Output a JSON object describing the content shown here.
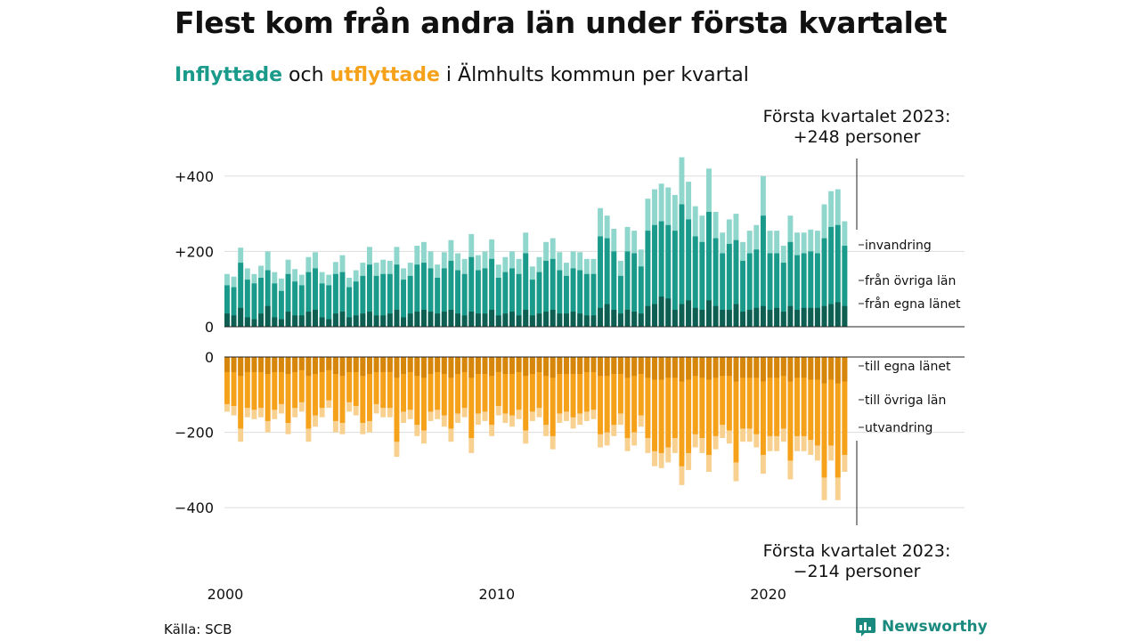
{
  "header": {
    "title": "Flest kom från andra län under första kvartalet",
    "subtitle_part1": "Inflyttade",
    "subtitle_part2": " och ",
    "subtitle_part3": "utflyttade",
    "subtitle_part4": " i Älmhults kommun per kvartal"
  },
  "footer": {
    "source": "Källa: SCB",
    "brand": "Newsworthy"
  },
  "colors": {
    "in_egna": "#0f5e52",
    "in_ovriga": "#1a9a8a",
    "in_invandring": "#8fd6cc",
    "ut_egna": "#d6860a",
    "ut_ovriga": "#f5a11a",
    "ut_utvandring": "#f8d08f",
    "grid": "#dddddd",
    "brand": "#1a8a7e"
  },
  "chart_data": {
    "type": "bar",
    "stacked": true,
    "x_start": "2000-Q1",
    "x_ticks": [
      "2000",
      "2010",
      "2020"
    ],
    "y_ticks_top": [
      "+400",
      "+200",
      "0"
    ],
    "y_ticks_bottom": [
      "0",
      "−200",
      "−400"
    ],
    "ylim_top": [
      0,
      450
    ],
    "ylim_bottom": [
      -450,
      0
    ],
    "grid": true,
    "inflow_labels": [
      "invandring",
      "från övriga län",
      "från egna länet"
    ],
    "outflow_labels": [
      "till egna länet",
      "till övriga län",
      "utvandring"
    ],
    "annotation_in_line1": "Första kvartalet 2023:",
    "annotation_in_line2": "+248 personer",
    "annotation_out_line1": "Första kvartalet 2023:",
    "annotation_out_line2": "−214 personer",
    "inflow_total": [
      140,
      133,
      210,
      155,
      140,
      162,
      200,
      145,
      128,
      178,
      153,
      138,
      185,
      198,
      145,
      138,
      172,
      190,
      130,
      150,
      170,
      212,
      170,
      178,
      175,
      212,
      155,
      170,
      215,
      225,
      200,
      165,
      198,
      230,
      195,
      180,
      246,
      190,
      200,
      232,
      165,
      185,
      200,
      180,
      250,
      160,
      185,
      225,
      235,
      198,
      170,
      200,
      198,
      180,
      180,
      315,
      295,
      260,
      175,
      265,
      255,
      205,
      340,
      365,
      380,
      370,
      350,
      450,
      385,
      320,
      295,
      420,
      305,
      250,
      285,
      300,
      225,
      255,
      270,
      400,
      255,
      255,
      215,
      295,
      250,
      250,
      258,
      255,
      325,
      360,
      365,
      280
    ],
    "inflow_ovriga": [
      110,
      105,
      170,
      125,
      115,
      130,
      150,
      115,
      95,
      140,
      120,
      110,
      145,
      155,
      115,
      110,
      140,
      145,
      105,
      120,
      135,
      165,
      135,
      140,
      140,
      165,
      125,
      135,
      165,
      170,
      155,
      130,
      155,
      175,
      150,
      140,
      185,
      150,
      155,
      180,
      130,
      145,
      155,
      140,
      195,
      125,
      145,
      175,
      180,
      150,
      135,
      155,
      150,
      140,
      140,
      240,
      235,
      200,
      135,
      200,
      195,
      160,
      255,
      270,
      280,
      270,
      255,
      325,
      285,
      240,
      225,
      305,
      235,
      195,
      220,
      230,
      175,
      195,
      205,
      295,
      195,
      195,
      170,
      225,
      190,
      195,
      200,
      195,
      235,
      265,
      270,
      215
    ],
    "inflow_egna": [
      35,
      30,
      50,
      25,
      20,
      35,
      55,
      25,
      20,
      40,
      30,
      30,
      40,
      45,
      25,
      20,
      35,
      40,
      25,
      30,
      35,
      40,
      30,
      30,
      35,
      45,
      25,
      35,
      40,
      45,
      40,
      35,
      40,
      45,
      35,
      30,
      40,
      35,
      35,
      45,
      30,
      35,
      40,
      30,
      45,
      30,
      35,
      40,
      45,
      35,
      35,
      40,
      35,
      30,
      30,
      50,
      60,
      45,
      35,
      45,
      40,
      35,
      55,
      60,
      80,
      75,
      45,
      60,
      70,
      50,
      45,
      70,
      55,
      45,
      45,
      60,
      40,
      45,
      50,
      55,
      45,
      50,
      40,
      55,
      45,
      50,
      50,
      50,
      55,
      60,
      65,
      55
    ],
    "outflow_total": [
      145,
      155,
      225,
      160,
      165,
      160,
      200,
      165,
      150,
      205,
      160,
      145,
      225,
      185,
      160,
      135,
      200,
      205,
      145,
      155,
      205,
      200,
      150,
      160,
      160,
      265,
      175,
      165,
      210,
      230,
      170,
      165,
      185,
      225,
      175,
      160,
      255,
      180,
      170,
      210,
      155,
      175,
      185,
      165,
      230,
      170,
      160,
      210,
      245,
      175,
      170,
      190,
      180,
      170,
      165,
      240,
      235,
      210,
      180,
      250,
      235,
      185,
      255,
      290,
      295,
      280,
      255,
      340,
      300,
      240,
      255,
      305,
      245,
      215,
      230,
      330,
      225,
      225,
      240,
      310,
      250,
      250,
      225,
      325,
      250,
      250,
      260,
      275,
      380,
      275,
      380,
      305
    ],
    "outflow_ovriga": [
      125,
      130,
      190,
      135,
      140,
      135,
      170,
      140,
      125,
      175,
      135,
      120,
      190,
      155,
      135,
      115,
      170,
      175,
      120,
      130,
      175,
      170,
      125,
      135,
      135,
      225,
      145,
      140,
      180,
      195,
      145,
      140,
      155,
      190,
      150,
      135,
      215,
      150,
      145,
      180,
      130,
      150,
      155,
      140,
      195,
      145,
      135,
      180,
      210,
      150,
      145,
      160,
      150,
      145,
      140,
      205,
      200,
      180,
      150,
      215,
      200,
      155,
      215,
      250,
      255,
      240,
      215,
      290,
      255,
      205,
      215,
      260,
      210,
      180,
      195,
      280,
      190,
      190,
      205,
      260,
      210,
      210,
      190,
      275,
      210,
      210,
      220,
      235,
      320,
      235,
      320,
      260
    ],
    "outflow_egna": [
      40,
      40,
      50,
      40,
      40,
      40,
      45,
      40,
      40,
      45,
      40,
      35,
      50,
      45,
      40,
      35,
      45,
      50,
      40,
      40,
      50,
      45,
      40,
      40,
      40,
      55,
      45,
      40,
      50,
      55,
      45,
      40,
      45,
      55,
      45,
      40,
      55,
      45,
      45,
      50,
      40,
      45,
      45,
      40,
      50,
      45,
      40,
      50,
      55,
      45,
      45,
      45,
      45,
      40,
      40,
      50,
      50,
      45,
      45,
      55,
      50,
      45,
      55,
      60,
      60,
      55,
      55,
      65,
      60,
      50,
      55,
      60,
      55,
      50,
      50,
      65,
      55,
      55,
      55,
      65,
      55,
      55,
      50,
      65,
      55,
      55,
      60,
      60,
      70,
      60,
      70,
      65
    ]
  }
}
